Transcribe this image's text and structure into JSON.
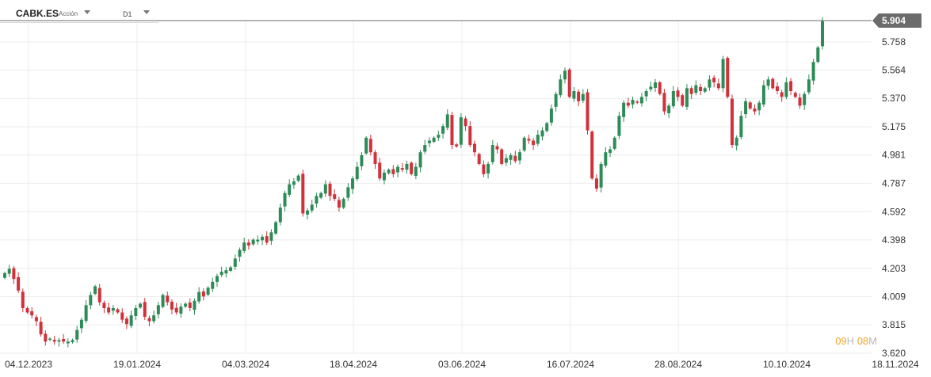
{
  "header": {
    "symbol": "CABK.ES",
    "asset_type": "Acción",
    "timeframe": "D1"
  },
  "countdown": {
    "hours": "09",
    "h_label": "H",
    "minutes": "08",
    "m_label": "M"
  },
  "colors": {
    "up": "#2e8b57",
    "down": "#d0313b",
    "grid": "#ececec",
    "axis_text": "#333333",
    "price_badge": "#6b6b6b"
  },
  "chart_data": {
    "type": "candlestick",
    "symbol": "CABK.ES",
    "timeframe": "D1",
    "current_price": 5.904,
    "current_price_label": "5.904",
    "ylim": [
      3.62,
      5.904
    ],
    "y_ticks": [
      {
        "v": 5.758,
        "label": "5.758"
      },
      {
        "v": 5.564,
        "label": "5.564"
      },
      {
        "v": 5.37,
        "label": "5.370"
      },
      {
        "v": 5.175,
        "label": "5.175"
      },
      {
        "v": 4.981,
        "label": "4.981"
      },
      {
        "v": 4.787,
        "label": "4.787"
      },
      {
        "v": 4.592,
        "label": "4.592"
      },
      {
        "v": 4.398,
        "label": "4.398"
      },
      {
        "v": 4.203,
        "label": "4.203"
      },
      {
        "v": 4.009,
        "label": "4.009"
      },
      {
        "v": 3.815,
        "label": "3.815"
      },
      {
        "v": 3.62,
        "label": "3.620"
      }
    ],
    "x_ticks": [
      "04.12.2023",
      "19.01.2024",
      "04.03.2024",
      "18.04.2024",
      "03.06.2024",
      "16.07.2024",
      "28.08.2024",
      "10.10.2024",
      "18.11.2024"
    ],
    "close_path": [
      [
        0,
        4.17
      ],
      [
        1,
        4.2
      ],
      [
        2,
        4.13
      ],
      [
        3,
        4.05
      ],
      [
        4,
        3.93
      ],
      [
        5,
        3.9
      ],
      [
        6,
        3.88
      ],
      [
        7,
        3.84
      ],
      [
        8,
        3.75
      ],
      [
        9,
        3.7
      ],
      [
        10,
        3.72
      ],
      [
        11,
        3.7
      ],
      [
        12,
        3.71
      ],
      [
        13,
        3.7
      ],
      [
        14,
        3.7
      ],
      [
        15,
        3.71
      ],
      [
        16,
        3.78
      ],
      [
        17,
        3.85
      ],
      [
        18,
        3.95
      ],
      [
        19,
        4.02
      ],
      [
        20,
        4.08
      ],
      [
        21,
        3.97
      ],
      [
        22,
        3.93
      ],
      [
        23,
        3.9
      ],
      [
        24,
        3.93
      ],
      [
        25,
        3.9
      ],
      [
        26,
        3.85
      ],
      [
        27,
        3.82
      ],
      [
        28,
        3.88
      ],
      [
        29,
        3.93
      ],
      [
        30,
        3.96
      ],
      [
        31,
        3.87
      ],
      [
        32,
        3.84
      ],
      [
        33,
        3.88
      ],
      [
        34,
        3.95
      ],
      [
        35,
        4.02
      ],
      [
        36,
        3.97
      ],
      [
        37,
        3.92
      ],
      [
        38,
        3.9
      ],
      [
        39,
        3.94
      ],
      [
        40,
        3.96
      ],
      [
        41,
        3.93
      ],
      [
        42,
        3.98
      ],
      [
        43,
        4.04
      ],
      [
        44,
        4.01
      ],
      [
        45,
        4.07
      ],
      [
        46,
        4.11
      ],
      [
        47,
        4.15
      ],
      [
        48,
        4.18
      ],
      [
        49,
        4.19
      ],
      [
        50,
        4.21
      ],
      [
        51,
        4.27
      ],
      [
        52,
        4.33
      ],
      [
        53,
        4.38
      ],
      [
        54,
        4.36
      ],
      [
        55,
        4.4
      ],
      [
        56,
        4.4
      ],
      [
        57,
        4.42
      ],
      [
        58,
        4.38
      ],
      [
        59,
        4.45
      ],
      [
        60,
        4.52
      ],
      [
        61,
        4.62
      ],
      [
        62,
        4.72
      ],
      [
        63,
        4.78
      ],
      [
        64,
        4.8
      ],
      [
        65,
        4.84
      ],
      [
        66,
        4.58
      ],
      [
        67,
        4.6
      ],
      [
        68,
        4.64
      ],
      [
        69,
        4.7
      ],
      [
        70,
        4.72
      ],
      [
        71,
        4.78
      ],
      [
        72,
        4.7
      ],
      [
        73,
        4.68
      ],
      [
        74,
        4.62
      ],
      [
        75,
        4.68
      ],
      [
        76,
        4.76
      ],
      [
        77,
        4.82
      ],
      [
        78,
        4.9
      ],
      [
        79,
        4.98
      ],
      [
        80,
        5.1
      ],
      [
        81,
        5.0
      ],
      [
        82,
        4.92
      ],
      [
        83,
        4.82
      ],
      [
        84,
        4.86
      ],
      [
        85,
        4.88
      ],
      [
        86,
        4.85
      ],
      [
        87,
        4.9
      ],
      [
        88,
        4.88
      ],
      [
        89,
        4.92
      ],
      [
        90,
        4.85
      ],
      [
        91,
        4.9
      ],
      [
        92,
        5.0
      ],
      [
        93,
        5.05
      ],
      [
        94,
        5.08
      ],
      [
        95,
        5.1
      ],
      [
        96,
        5.12
      ],
      [
        97,
        5.18
      ],
      [
        98,
        5.26
      ],
      [
        99,
        5.05
      ],
      [
        100,
        5.04
      ],
      [
        101,
        5.24
      ],
      [
        102,
        5.18
      ],
      [
        103,
        5.05
      ],
      [
        104,
        5.0
      ],
      [
        105,
        4.92
      ],
      [
        106,
        4.85
      ],
      [
        107,
        4.92
      ],
      [
        108,
        5.05
      ],
      [
        109,
        5.02
      ],
      [
        110,
        4.92
      ],
      [
        111,
        4.96
      ],
      [
        112,
        4.98
      ],
      [
        113,
        4.94
      ],
      [
        114,
        5.0
      ],
      [
        115,
        5.1
      ],
      [
        116,
        5.08
      ],
      [
        117,
        5.05
      ],
      [
        118,
        5.12
      ],
      [
        119,
        5.15
      ],
      [
        120,
        5.2
      ],
      [
        121,
        5.3
      ],
      [
        122,
        5.4
      ],
      [
        123,
        5.5
      ],
      [
        124,
        5.56
      ],
      [
        125,
        5.38
      ],
      [
        126,
        5.42
      ],
      [
        127,
        5.35
      ],
      [
        128,
        5.4
      ],
      [
        129,
        5.15
      ],
      [
        130,
        4.82
      ],
      [
        131,
        4.75
      ],
      [
        132,
        4.92
      ],
      [
        133,
        5.0
      ],
      [
        134,
        5.02
      ],
      [
        135,
        5.1
      ],
      [
        136,
        5.25
      ],
      [
        137,
        5.34
      ],
      [
        138,
        5.32
      ],
      [
        139,
        5.36
      ],
      [
        140,
        5.34
      ],
      [
        141,
        5.38
      ],
      [
        142,
        5.42
      ],
      [
        143,
        5.45
      ],
      [
        144,
        5.48
      ],
      [
        145,
        5.4
      ],
      [
        146,
        5.28
      ],
      [
        147,
        5.32
      ],
      [
        148,
        5.42
      ],
      [
        149,
        5.38
      ],
      [
        150,
        5.32
      ],
      [
        151,
        5.44
      ],
      [
        152,
        5.4
      ],
      [
        153,
        5.46
      ],
      [
        154,
        5.42
      ],
      [
        155,
        5.44
      ],
      [
        156,
        5.5
      ],
      [
        157,
        5.48
      ],
      [
        158,
        5.44
      ],
      [
        159,
        5.64
      ],
      [
        160,
        5.38
      ],
      [
        161,
        5.05
      ],
      [
        162,
        5.1
      ],
      [
        163,
        5.25
      ],
      [
        164,
        5.35
      ],
      [
        165,
        5.3
      ],
      [
        166,
        5.28
      ],
      [
        167,
        5.34
      ],
      [
        168,
        5.46
      ],
      [
        169,
        5.5
      ],
      [
        170,
        5.44
      ],
      [
        171,
        5.42
      ],
      [
        172,
        5.38
      ],
      [
        173,
        5.48
      ],
      [
        174,
        5.42
      ],
      [
        175,
        5.38
      ],
      [
        176,
        5.32
      ],
      [
        177,
        5.4
      ],
      [
        178,
        5.5
      ],
      [
        179,
        5.62
      ],
      [
        180,
        5.72
      ],
      [
        181,
        5.9
      ]
    ]
  }
}
